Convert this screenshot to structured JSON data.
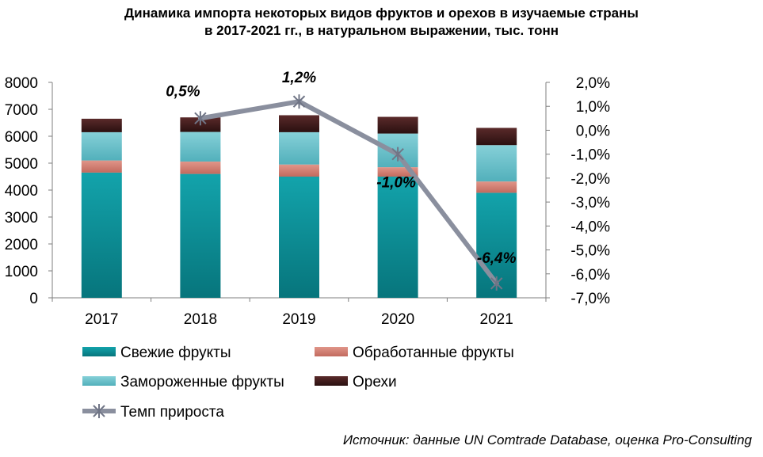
{
  "chart_data": {
    "type": "bar",
    "title": [
      "Динамика импорта некоторых видов фруктов и орехов в изучаемые страны",
      "в 2017-2021 гг., в натуральном выражении, тыс. тонн"
    ],
    "categories": [
      "2017",
      "2018",
      "2019",
      "2020",
      "2021"
    ],
    "stacked": true,
    "series": [
      {
        "name": "Свежие фрукты",
        "color": "#0e8f96",
        "values": [
          4650,
          4600,
          4500,
          4500,
          3900
        ]
      },
      {
        "name": "Обработанные фрукты",
        "color": "#d67f72",
        "values": [
          450,
          460,
          450,
          350,
          420
        ]
      },
      {
        "name": "Замороженные фрукты",
        "color": "#6ec3cc",
        "values": [
          1050,
          1100,
          1200,
          1250,
          1350
        ]
      },
      {
        "name": "Орехи",
        "color": "#3d1a1a",
        "values": [
          500,
          540,
          630,
          620,
          640
        ]
      }
    ],
    "line_series": {
      "name": "Темп прироста",
      "color": "#8a8f9e",
      "axis": "right",
      "values": [
        null,
        0.5,
        1.2,
        -1.0,
        -6.4
      ],
      "labels": [
        "",
        "0,5%",
        "1,2%",
        "-1,0%",
        "-6,4%"
      ]
    },
    "y_left": {
      "min": 0,
      "max": 8000,
      "step": 1000,
      "ticks": [
        "0",
        "1000",
        "2000",
        "3000",
        "4000",
        "5000",
        "6000",
        "7000",
        "8000"
      ]
    },
    "y_right": {
      "min": -7,
      "max": 2,
      "step": 1,
      "ticks": [
        "-7,0%",
        "-6,0%",
        "-5,0%",
        "-4,0%",
        "-3,0%",
        "-2,0%",
        "-1,0%",
        "0,0%",
        "1,0%",
        "2,0%"
      ]
    },
    "legend_position": "bottom",
    "grid": false
  },
  "source": "Источник: данные UN Comtrade Database, оценка Pro-Consulting"
}
